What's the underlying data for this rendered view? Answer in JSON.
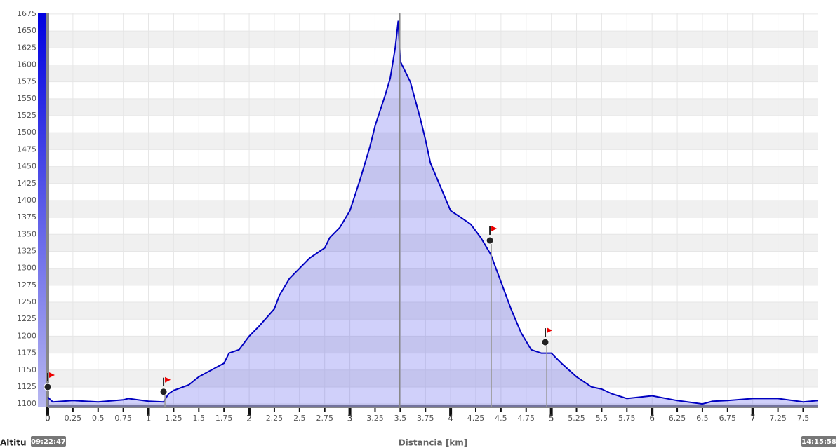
{
  "chart_data": {
    "type": "area",
    "x_label": "Distancia [km]",
    "y_label": "Altitu",
    "start_time": "09:22:47",
    "end_time": "14:15:58",
    "xlim": [
      0,
      7.65
    ],
    "ylim": [
      1096,
      1677
    ],
    "xticks": [
      0,
      0.25,
      0.5,
      0.75,
      1,
      1.25,
      1.5,
      1.75,
      2,
      2.25,
      2.5,
      2.75,
      3,
      3.25,
      3.5,
      3.75,
      4,
      4.25,
      4.5,
      4.75,
      5,
      5.25,
      5.5,
      5.75,
      6,
      6.25,
      6.5,
      6.75,
      7,
      7.25,
      7.5
    ],
    "yticks": [
      1100,
      1125,
      1150,
      1175,
      1200,
      1225,
      1250,
      1275,
      1300,
      1325,
      1350,
      1375,
      1400,
      1425,
      1450,
      1475,
      1500,
      1525,
      1550,
      1575,
      1600,
      1625,
      1650,
      1675
    ],
    "grid": true,
    "series": [
      {
        "color": "#0000c0",
        "x": [
          0,
          0.05,
          0.25,
          0.5,
          0.75,
          0.8,
          1,
          1.15,
          1.2,
          1.25,
          1.4,
          1.5,
          1.75,
          1.8,
          1.9,
          2,
          2.1,
          2.25,
          2.3,
          2.4,
          2.5,
          2.6,
          2.75,
          2.8,
          2.9,
          3,
          3.1,
          3.2,
          3.25,
          3.35,
          3.4,
          3.45,
          3.48,
          3.5,
          3.6,
          3.7,
          3.75,
          3.8,
          3.9,
          4,
          4.1,
          4.2,
          4.3,
          4.4,
          4.5,
          4.6,
          4.7,
          4.8,
          4.9,
          5,
          5.1,
          5.25,
          5.4,
          5.5,
          5.6,
          5.75,
          6,
          6.25,
          6.5,
          6.6,
          6.75,
          7,
          7.25,
          7.5,
          7.65
        ],
        "values": [
          1110,
          1103,
          1105,
          1103,
          1106,
          1108,
          1104,
          1103,
          1115,
          1120,
          1128,
          1140,
          1160,
          1175,
          1180,
          1200,
          1215,
          1240,
          1260,
          1285,
          1300,
          1315,
          1330,
          1345,
          1360,
          1385,
          1430,
          1480,
          1510,
          1555,
          1580,
          1625,
          1665,
          1605,
          1575,
          1520,
          1490,
          1455,
          1420,
          1385,
          1375,
          1365,
          1345,
          1320,
          1280,
          1240,
          1205,
          1180,
          1175,
          1175,
          1160,
          1140,
          1125,
          1122,
          1115,
          1108,
          1112,
          1105,
          1100,
          1104,
          1105,
          1108,
          1108,
          1103,
          1105
        ]
      }
    ],
    "markers": {
      "x": [
        0,
        1.15,
        4.39,
        4.94
      ],
      "values": [
        1125,
        1118,
        1341,
        1191
      ]
    }
  }
}
